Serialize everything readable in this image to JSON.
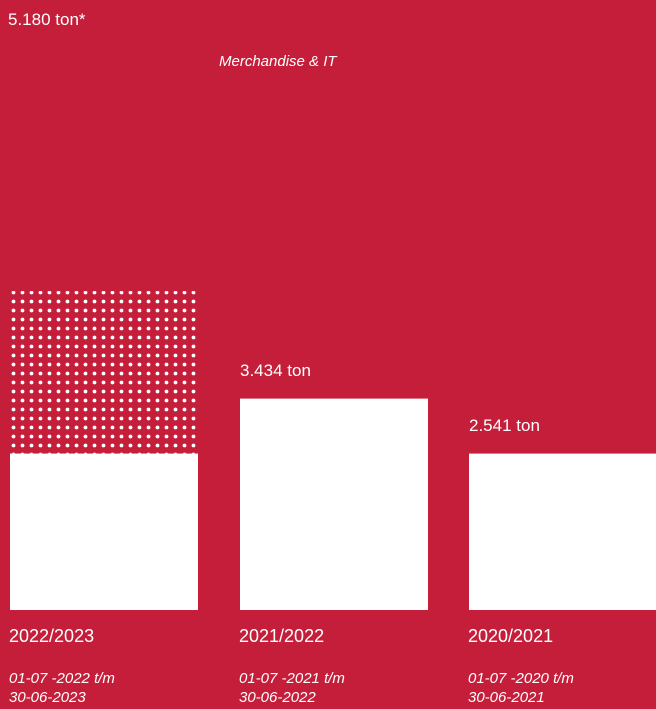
{
  "chart_data": {
    "type": "bar",
    "stacked": true,
    "unit": "ton",
    "ylim": [
      0,
      5180
    ],
    "grid": false,
    "legend": "none",
    "categories": [
      "2022/2023",
      "2021/2022",
      "2020/2021"
    ],
    "periods": [
      [
        "01-07 -2022 t/m",
        "30-06-2023"
      ],
      [
        "01-07 -2021 t/m",
        "30-06-2022"
      ],
      [
        "01-07 -2020 t/m",
        "30-06-2021"
      ]
    ],
    "series": [
      {
        "values": [
          2541,
          3434,
          2541
        ],
        "fill": "solid"
      },
      {
        "name": "Merchandise & IT",
        "values": [
          2639,
          0,
          0
        ],
        "fill": "dotted"
      }
    ],
    "data_labels": [
      "5.180 ton*",
      "3.434 ton",
      "2.541 ton"
    ],
    "totals": [
      5180,
      3434,
      2541
    ]
  },
  "colors": {
    "background": "#c41e3a",
    "bar": "#ffffff"
  }
}
